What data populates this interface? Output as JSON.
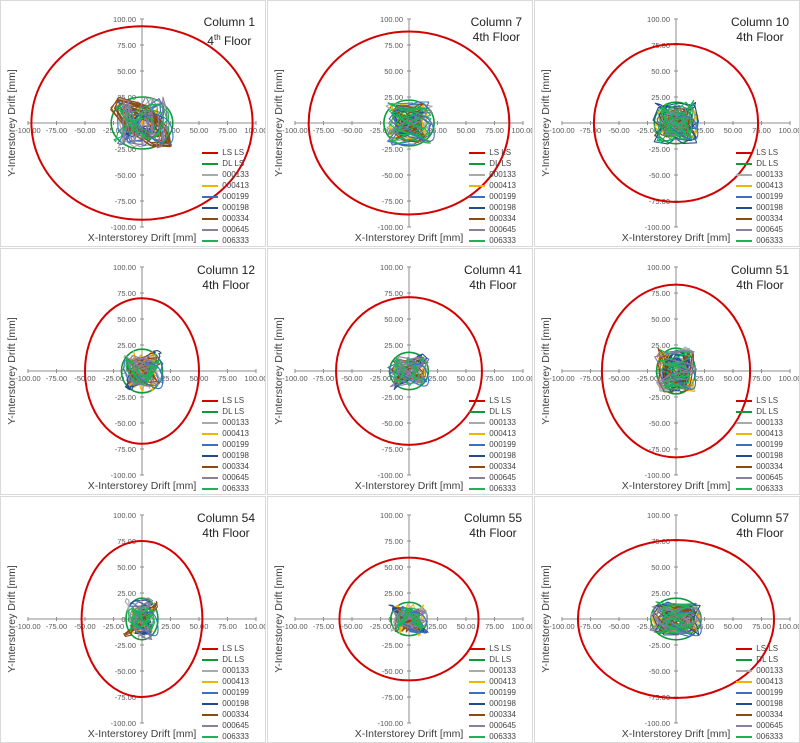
{
  "figure": {
    "x_axis_title": "X-Interstorey Drift [mm]",
    "y_axis_title": "Y-Interstorey Drift [mm]",
    "x_tick_labels": [
      "-100.00",
      "-75.00",
      "-50.00",
      "-25.00",
      "0.00",
      "25.00",
      "50.00",
      "75.00",
      "100.00"
    ],
    "y_tick_labels": [
      "100.00",
      "75.00",
      "50.00",
      "25.00",
      "0.00",
      "-25.00",
      "-50.00",
      "-75.00",
      "-100.00"
    ],
    "legend": [
      {
        "label": "LS LS",
        "color": "#d40000"
      },
      {
        "label": "DL LS",
        "color": "#109a3a"
      },
      {
        "label": "000133",
        "color": "#a9a9a9"
      },
      {
        "label": "000413",
        "color": "#f2b400"
      },
      {
        "label": "000199",
        "color": "#3b6fc4"
      },
      {
        "label": "000198",
        "color": "#204c8c"
      },
      {
        "label": "000334",
        "color": "#8b4a12"
      },
      {
        "label": "000645",
        "color": "#8c7f9e"
      },
      {
        "label": "006333",
        "color": "#1db25a"
      }
    ]
  },
  "chart_data": [
    {
      "type": "scatter",
      "title_line1": "Column 1",
      "title_line2": "4th Floor",
      "superscript": "th",
      "xlim": [
        -100,
        100
      ],
      "ylim": [
        -100,
        100
      ],
      "grid": false,
      "legend_position": "bottom-right",
      "ls_ellipse": {
        "rx": 97,
        "ry": 93
      },
      "dl_ellipse": {
        "rx": 27,
        "ry": 25
      },
      "series_names": [
        "LS LS",
        "DL LS",
        "000133",
        "000413",
        "000199",
        "000198",
        "000334",
        "000645",
        "006333"
      ]
    },
    {
      "type": "scatter",
      "title_line1": "Column 7",
      "title_line2": "4th Floor",
      "xlim": [
        -100,
        100
      ],
      "ylim": [
        -100,
        100
      ],
      "grid": false,
      "legend_position": "bottom-right",
      "ls_ellipse": {
        "rx": 88,
        "ry": 88
      },
      "dl_ellipse": {
        "rx": 22,
        "ry": 22
      },
      "series_names": [
        "LS LS",
        "DL LS",
        "000133",
        "000413",
        "000199",
        "000198",
        "000334",
        "000645",
        "006333"
      ]
    },
    {
      "type": "scatter",
      "title_line1": "Column 10",
      "title_line2": "4th Floor",
      "xlim": [
        -100,
        100
      ],
      "ylim": [
        -100,
        100
      ],
      "grid": false,
      "legend_position": "bottom-right",
      "ls_ellipse": {
        "rx": 72,
        "ry": 76
      },
      "dl_ellipse": {
        "rx": 19,
        "ry": 20
      },
      "series_names": [
        "LS LS",
        "DL LS",
        "000133",
        "000413",
        "000199",
        "000198",
        "000334",
        "000645",
        "006333"
      ]
    },
    {
      "type": "scatter",
      "title_line1": "Column 12",
      "title_line2": "4th Floor",
      "xlim": [
        -100,
        100
      ],
      "ylim": [
        -100,
        100
      ],
      "grid": false,
      "legend_position": "bottom-right",
      "ls_ellipse": {
        "rx": 50,
        "ry": 70
      },
      "dl_ellipse": {
        "rx": 18,
        "ry": 21
      },
      "series_names": [
        "LS LS",
        "DL LS",
        "000133",
        "000413",
        "000199",
        "000198",
        "000334",
        "000645",
        "006333"
      ]
    },
    {
      "type": "scatter",
      "title_line1": "Column 41",
      "title_line2": "4th Floor",
      "xlim": [
        -100,
        100
      ],
      "ylim": [
        -100,
        100
      ],
      "grid": false,
      "legend_position": "bottom-right",
      "ls_ellipse": {
        "rx": 64,
        "ry": 71
      },
      "dl_ellipse": {
        "rx": 17,
        "ry": 18
      },
      "series_names": [
        "LS LS",
        "DL LS",
        "000133",
        "000413",
        "000199",
        "000198",
        "000334",
        "000645",
        "006333"
      ]
    },
    {
      "type": "scatter",
      "title_line1": "Column 51",
      "title_line2": "4th Floor",
      "xlim": [
        -100,
        100
      ],
      "ylim": [
        -100,
        100
      ],
      "grid": false,
      "legend_position": "bottom-right",
      "ls_ellipse": {
        "rx": 65,
        "ry": 83
      },
      "dl_ellipse": {
        "rx": 17,
        "ry": 22
      },
      "series_names": [
        "LS LS",
        "DL LS",
        "000133",
        "000413",
        "000199",
        "000198",
        "000334",
        "000645",
        "006333"
      ]
    },
    {
      "type": "scatter",
      "title_line1": "Column 54",
      "title_line2": "4th Floor",
      "xlim": [
        -100,
        100
      ],
      "ylim": [
        -100,
        100
      ],
      "grid": false,
      "legend_position": "bottom-right",
      "ls_ellipse": {
        "rx": 53,
        "ry": 75
      },
      "dl_ellipse": {
        "rx": 14,
        "ry": 20
      },
      "series_names": [
        "LS LS",
        "DL LS",
        "000133",
        "000413",
        "000199",
        "000198",
        "000334",
        "000645",
        "006333"
      ]
    },
    {
      "type": "scatter",
      "title_line1": "Column 55",
      "title_line2": "4th Floor",
      "xlim": [
        -100,
        100
      ],
      "ylim": [
        -100,
        100
      ],
      "grid": false,
      "legend_position": "bottom-right",
      "ls_ellipse": {
        "rx": 61,
        "ry": 59
      },
      "dl_ellipse": {
        "rx": 16,
        "ry": 16
      },
      "series_names": [
        "LS LS",
        "DL LS",
        "000133",
        "000413",
        "000199",
        "000198",
        "000334",
        "000645",
        "006333"
      ]
    },
    {
      "type": "scatter",
      "title_line1": "Column 57",
      "title_line2": "4th Floor",
      "xlim": [
        -100,
        100
      ],
      "ylim": [
        -100,
        100
      ],
      "grid": false,
      "legend_position": "bottom-right",
      "ls_ellipse": {
        "rx": 86,
        "ry": 76
      },
      "dl_ellipse": {
        "rx": 22,
        "ry": 20
      },
      "series_names": [
        "LS LS",
        "DL LS",
        "000133",
        "000413",
        "000199",
        "000198",
        "000334",
        "000645",
        "006333"
      ]
    }
  ]
}
